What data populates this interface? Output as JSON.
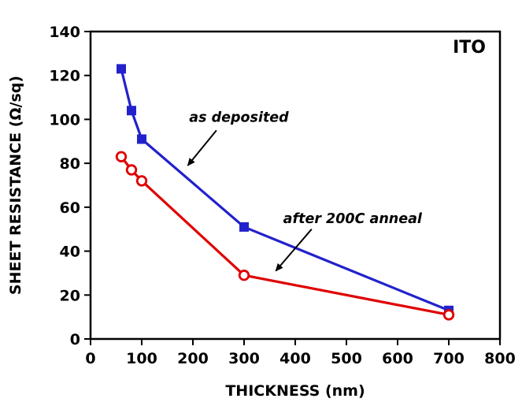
{
  "chart_data": {
    "type": "line",
    "corner_label": "ITO",
    "xlabel": "THICKNESS (nm)",
    "ylabel": "SHEET RESISTANCE (Ω/sq)",
    "x": [
      60,
      80,
      100,
      300,
      700
    ],
    "series": [
      {
        "name": "as deposited",
        "values": [
          123,
          104,
          91,
          51,
          13
        ],
        "color": "#2222cc",
        "marker": "filled-square"
      },
      {
        "name": "after 200C anneal",
        "values": [
          83,
          77,
          72,
          29,
          11
        ],
        "color": "#e00000",
        "marker": "open-circle"
      }
    ],
    "xlim": [
      0,
      800
    ],
    "ylim": [
      0,
      140
    ],
    "xticks": [
      0,
      100,
      200,
      300,
      400,
      500,
      600,
      700,
      800
    ],
    "yticks": [
      0,
      20,
      40,
      60,
      80,
      100,
      120,
      140
    ],
    "grid": false,
    "legend": "none",
    "annotations": [
      {
        "text": "as deposited",
        "x": 290,
        "y": 101,
        "arrow_from": {
          "x": 246,
          "y": 95
        },
        "arrow_to": {
          "x": 190,
          "y": 79
        }
      },
      {
        "text": "after 200C anneal",
        "x": 512,
        "y": 55,
        "arrow_from": {
          "x": 432,
          "y": 50
        },
        "arrow_to": {
          "x": 362,
          "y": 31
        }
      }
    ]
  }
}
